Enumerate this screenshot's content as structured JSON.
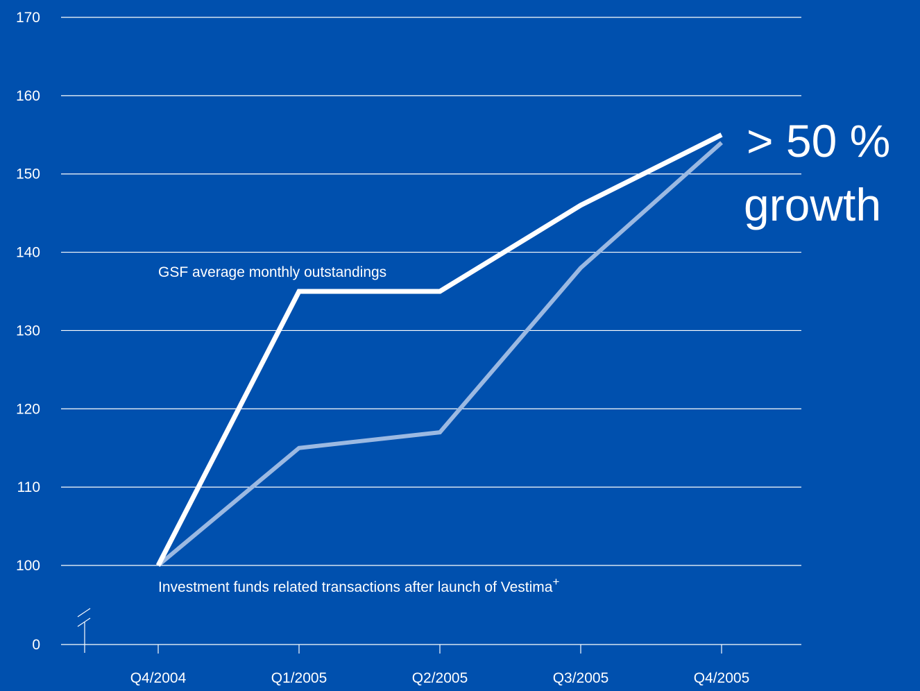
{
  "chart_data": {
    "type": "line",
    "categories": [
      "Q4/2004",
      "Q1/2005",
      "Q2/2005",
      "Q3/2005",
      "Q4/2005"
    ],
    "y_ticks": [
      {
        "value": 0,
        "label": "0"
      },
      {
        "value": 100,
        "label": "100"
      },
      {
        "value": 110,
        "label": "110"
      },
      {
        "value": 120,
        "label": "120"
      },
      {
        "value": 130,
        "label": "130"
      },
      {
        "value": 140,
        "label": "140"
      },
      {
        "value": 150,
        "label": "150"
      },
      {
        "value": 160,
        "label": "160"
      },
      {
        "value": 170,
        "label": "170"
      }
    ],
    "ylim": [
      100,
      170
    ],
    "y_axis_break": "between 0 and 100",
    "grid": true,
    "series": [
      {
        "name": "GSF average monthly outstandings",
        "values": [
          100,
          135,
          135,
          146,
          155
        ],
        "color": "#ffffff"
      },
      {
        "name": "Investment funds related transactions after launch of Vestima",
        "name_superscript": "+",
        "values": [
          100,
          115,
          117,
          138,
          154
        ],
        "color": "#9bb9e2"
      }
    ],
    "annotation": {
      "line1": "> 50 %",
      "line2": "growth"
    },
    "colors": {
      "background": "#0050ae",
      "gridline": "#ffffff"
    }
  }
}
